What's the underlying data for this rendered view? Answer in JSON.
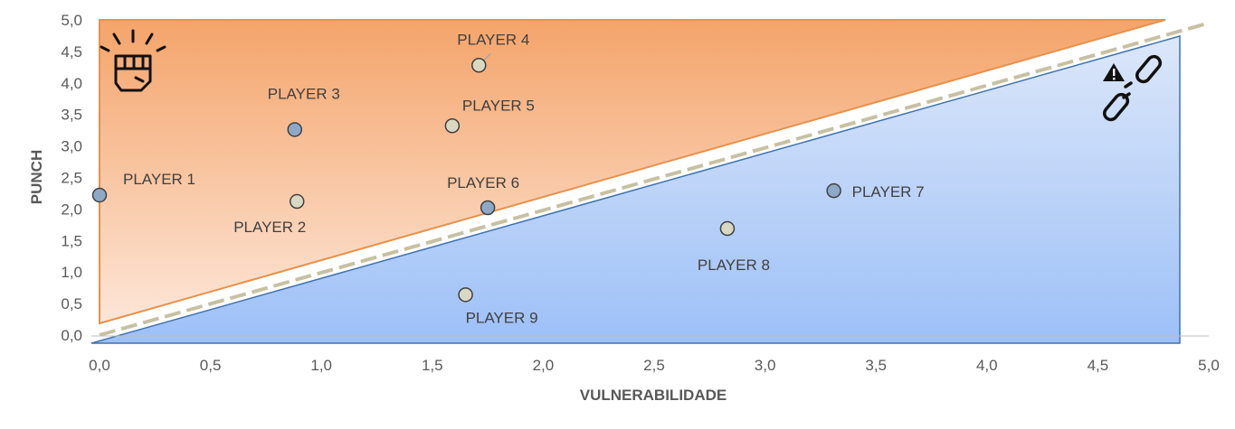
{
  "chart_data": {
    "type": "scatter",
    "xlabel": "VULNERABILIDADE",
    "ylabel": "PUNCH",
    "xlim": [
      0,
      5
    ],
    "ylim": [
      0,
      5
    ],
    "x_ticks": [
      "0,0",
      "0,5",
      "1,0",
      "1,5",
      "2,0",
      "2,5",
      "3,0",
      "3,5",
      "4,0",
      "4,5",
      "5,0"
    ],
    "y_ticks": [
      "0,0",
      "0,5",
      "1,0",
      "1,5",
      "2,0",
      "2,5",
      "3,0",
      "3,5",
      "4,0",
      "4,5",
      "5,0"
    ],
    "points": [
      {
        "label": "PLAYER 1",
        "x": 0.0,
        "y": 2.22,
        "color": "#8EA9C8"
      },
      {
        "label": "PLAYER 2",
        "x": 0.89,
        "y": 2.12,
        "color": "#D9D9C3"
      },
      {
        "label": "PLAYER 3",
        "x": 0.88,
        "y": 3.26,
        "color": "#8EA9C8"
      },
      {
        "label": "PLAYER 4",
        "x": 1.71,
        "y": 4.28,
        "color": "#D9D9C3"
      },
      {
        "label": "PLAYER 5",
        "x": 1.59,
        "y": 3.32,
        "color": "#D9D9C3"
      },
      {
        "label": "PLAYER 6",
        "x": 1.75,
        "y": 2.02,
        "color": "#8EA9C8"
      },
      {
        "label": "PLAYER 7",
        "x": 3.31,
        "y": 2.29,
        "color": "#8EA9C8"
      },
      {
        "label": "PLAYER 8",
        "x": 2.83,
        "y": 1.69,
        "color": "#D9D9C3"
      },
      {
        "label": "PLAYER 9",
        "x": 1.65,
        "y": 0.64,
        "color": "#D9D9C3"
      }
    ],
    "dashed_line": {
      "from": [
        0,
        0
      ],
      "to": [
        5,
        4.95
      ],
      "color": "#C7C1A3"
    },
    "regions": {
      "upper": {
        "color_top": "#F4A46A",
        "color_bottom": "#FDE6D8",
        "edge": "#E8914A"
      },
      "lower": {
        "color_top": "#DCE7F9",
        "color_bottom": "#9DC0F8",
        "edge": "#3E72B0"
      }
    },
    "icons": [
      "fist-icon",
      "broken-chain-warning-icon"
    ],
    "grid": false
  }
}
